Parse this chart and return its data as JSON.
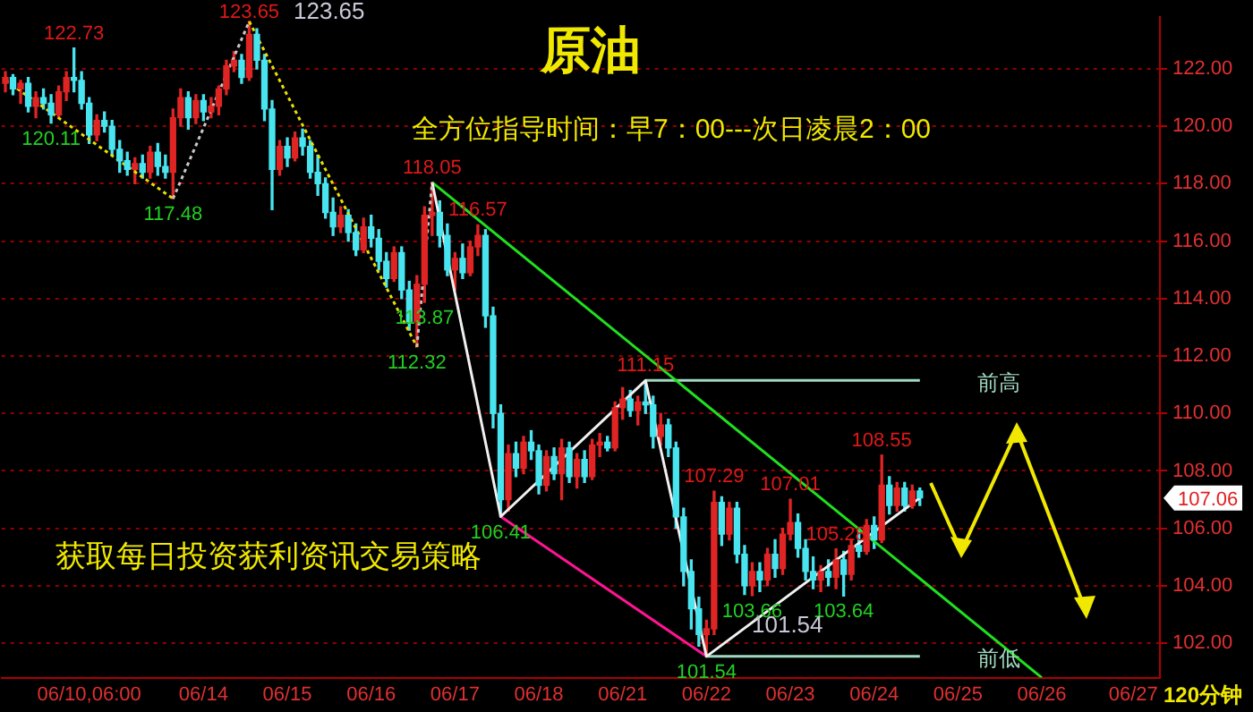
{
  "chart_data": {
    "type": "candlestick",
    "title": "原油",
    "subtitle": "全方位指导时间：早7：00---次日凌晨2：00",
    "categories": [
      null,
      null,
      null,
      null,
      null,
      null,
      null,
      null,
      null,
      null,
      null,
      "06/10,06:00",
      null,
      null,
      null,
      null,
      null,
      null,
      null,
      null,
      null,
      null,
      null,
      null,
      null,
      null,
      "06/14",
      null,
      null,
      null,
      null,
      null,
      null,
      null,
      null,
      null,
      null,
      "06/15",
      null,
      null,
      null,
      null,
      null,
      null,
      null,
      null,
      null,
      null,
      "06/16",
      null,
      null,
      null,
      null,
      null,
      null,
      null,
      null,
      null,
      null,
      "06/17",
      null,
      null,
      null,
      null,
      null,
      null,
      null,
      null,
      null,
      null,
      "06/18",
      null,
      null,
      null,
      null,
      null,
      null,
      null,
      null,
      null,
      null,
      "06/21",
      null,
      null,
      null,
      null,
      null,
      null,
      null,
      null,
      null,
      null,
      "06/22",
      null,
      null,
      null,
      null,
      null,
      null,
      null,
      null,
      null,
      null,
      "06/23",
      null,
      null,
      null,
      null,
      null,
      null,
      null,
      null,
      null,
      null,
      "06/24",
      null,
      null,
      null,
      null,
      null,
      null,
      null,
      null,
      null,
      null,
      "06/25",
      null,
      null,
      null,
      null,
      null,
      null,
      null,
      null,
      null,
      null,
      "06/26",
      null,
      null,
      null,
      null,
      null,
      null,
      null,
      null,
      null,
      null,
      null,
      "06/27",
      null,
      null,
      null
    ],
    "ohlc": [
      [
        121.5,
        121.9,
        121.2,
        121.7
      ],
      [
        121.7,
        121.8,
        121.1,
        121.3
      ],
      [
        121.3,
        121.6,
        120.8,
        121.5
      ],
      [
        121.5,
        121.7,
        120.5,
        120.7
      ],
      [
        120.7,
        121.2,
        120.3,
        121.0
      ],
      [
        121.0,
        121.3,
        120.6,
        120.8
      ],
      [
        120.8,
        121.1,
        120.11,
        120.4
      ],
      [
        120.4,
        121.4,
        120.3,
        121.2
      ],
      [
        121.2,
        121.9,
        120.9,
        121.7
      ],
      [
        121.7,
        122.73,
        121.2,
        121.6
      ],
      [
        121.6,
        121.9,
        120.6,
        120.8
      ],
      [
        120.8,
        121.0,
        119.4,
        119.7
      ],
      [
        119.7,
        120.4,
        119.5,
        120.2
      ],
      [
        120.2,
        120.5,
        119.8,
        120.0
      ],
      [
        120.0,
        120.2,
        119.0,
        119.2
      ],
      [
        119.2,
        119.5,
        118.4,
        118.8
      ],
      [
        118.8,
        119.1,
        118.3,
        118.5
      ],
      [
        118.5,
        118.9,
        118.0,
        118.7
      ],
      [
        118.7,
        119.0,
        118.2,
        118.4
      ],
      [
        118.4,
        119.3,
        118.2,
        119.1
      ],
      [
        119.1,
        119.4,
        118.3,
        118.6
      ],
      [
        118.6,
        119.0,
        118.2,
        118.4
      ],
      [
        118.4,
        120.6,
        117.48,
        120.3
      ],
      [
        120.3,
        121.3,
        120.0,
        121.0
      ],
      [
        121.0,
        121.2,
        119.9,
        120.3
      ],
      [
        120.3,
        121.1,
        120.1,
        120.9
      ],
      [
        120.9,
        121.1,
        120.2,
        120.5
      ],
      [
        120.5,
        121.0,
        120.3,
        120.7
      ],
      [
        120.7,
        121.4,
        120.4,
        121.3
      ],
      [
        121.3,
        122.3,
        121.1,
        122.1
      ],
      [
        122.1,
        122.6,
        121.9,
        122.3
      ],
      [
        122.3,
        122.5,
        121.5,
        121.7
      ],
      [
        121.7,
        123.65,
        121.6,
        123.2
      ],
      [
        123.2,
        123.4,
        122.0,
        122.3
      ],
      [
        122.3,
        122.5,
        120.2,
        120.6
      ],
      [
        120.6,
        120.9,
        117.1,
        118.5
      ],
      [
        118.5,
        119.5,
        118.3,
        119.3
      ],
      [
        119.3,
        119.6,
        118.6,
        118.9
      ],
      [
        118.9,
        119.8,
        118.8,
        119.6
      ],
      [
        119.6,
        119.9,
        119.0,
        119.3
      ],
      [
        119.3,
        119.5,
        118.2,
        118.4
      ],
      [
        118.4,
        119.0,
        117.6,
        118.0
      ],
      [
        118.0,
        118.2,
        116.8,
        117.0
      ],
      [
        117.0,
        117.5,
        116.2,
        116.5
      ],
      [
        116.5,
        117.2,
        116.3,
        116.9
      ],
      [
        116.9,
        117.1,
        116.0,
        116.3
      ],
      [
        116.3,
        116.6,
        115.5,
        115.7
      ],
      [
        115.7,
        116.8,
        115.6,
        116.5
      ],
      [
        116.5,
        116.9,
        115.8,
        116.1
      ],
      [
        116.1,
        116.4,
        115.0,
        115.3
      ],
      [
        115.3,
        115.6,
        114.4,
        114.7
      ],
      [
        114.7,
        115.8,
        114.6,
        115.6
      ],
      [
        115.6,
        115.8,
        114.0,
        114.3
      ],
      [
        114.3,
        114.6,
        112.9,
        113.2
      ],
      [
        113.2,
        114.8,
        112.32,
        114.5
      ],
      [
        114.5,
        117.2,
        113.87,
        116.9
      ],
      [
        116.9,
        118.05,
        116.2,
        117.0
      ],
      [
        117.0,
        117.4,
        115.8,
        116.2
      ],
      [
        116.2,
        116.6,
        114.8,
        115.0
      ],
      [
        115.0,
        115.6,
        114.3,
        115.4
      ],
      [
        115.4,
        115.9,
        114.7,
        114.9
      ],
      [
        114.9,
        116.0,
        114.8,
        115.8
      ],
      [
        115.8,
        116.57,
        115.5,
        116.2
      ],
      [
        116.2,
        116.4,
        113.0,
        113.4
      ],
      [
        113.4,
        113.7,
        109.5,
        110.0
      ],
      [
        110.0,
        110.3,
        106.41,
        107.0
      ],
      [
        107.0,
        108.9,
        106.6,
        108.6
      ],
      [
        108.6,
        109.0,
        107.8,
        108.1
      ],
      [
        108.1,
        109.2,
        107.9,
        109.0
      ],
      [
        109.0,
        109.4,
        108.4,
        108.7
      ],
      [
        108.7,
        108.9,
        107.2,
        107.5
      ],
      [
        107.5,
        108.7,
        107.3,
        108.5
      ],
      [
        108.5,
        108.8,
        107.7,
        107.9
      ],
      [
        107.9,
        109.1,
        107.0,
        108.8
      ],
      [
        108.8,
        109.0,
        107.6,
        107.8
      ],
      [
        107.8,
        108.6,
        107.4,
        108.4
      ],
      [
        108.4,
        108.7,
        107.6,
        107.8
      ],
      [
        107.8,
        109.1,
        107.7,
        108.9
      ],
      [
        108.9,
        109.3,
        108.5,
        109.0
      ],
      [
        109.0,
        109.2,
        108.7,
        108.8
      ],
      [
        108.8,
        110.4,
        108.7,
        110.2
      ],
      [
        110.2,
        110.9,
        109.8,
        110.5
      ],
      [
        110.5,
        110.8,
        109.9,
        110.1
      ],
      [
        110.1,
        110.6,
        109.6,
        110.4
      ],
      [
        110.4,
        111.15,
        110.0,
        110.3
      ],
      [
        110.3,
        110.6,
        108.8,
        109.2
      ],
      [
        109.2,
        110.0,
        108.9,
        109.6
      ],
      [
        109.6,
        109.8,
        108.5,
        108.8
      ],
      [
        108.8,
        109.0,
        106.0,
        106.4
      ],
      [
        106.4,
        106.7,
        104.0,
        104.5
      ],
      [
        104.5,
        104.9,
        102.5,
        103.2
      ],
      [
        103.2,
        103.6,
        101.9,
        102.3
      ],
      [
        102.3,
        102.8,
        101.54,
        102.5
      ],
      [
        102.5,
        107.29,
        102.3,
        106.9
      ],
      [
        106.9,
        107.1,
        105.4,
        105.8
      ],
      [
        105.8,
        106.9,
        105.6,
        106.7
      ],
      [
        106.7,
        106.9,
        104.8,
        105.1
      ],
      [
        105.1,
        105.4,
        103.7,
        104.0
      ],
      [
        104.0,
        104.8,
        103.66,
        104.5
      ],
      [
        104.5,
        104.8,
        103.8,
        104.2
      ],
      [
        104.2,
        105.3,
        104.0,
        105.1
      ],
      [
        105.1,
        105.6,
        104.3,
        104.6
      ],
      [
        104.6,
        106.0,
        104.4,
        105.8
      ],
      [
        105.8,
        107.01,
        105.6,
        106.2
      ],
      [
        106.2,
        106.5,
        105.0,
        105.3
      ],
      [
        105.3,
        105.6,
        104.2,
        104.5
      ],
      [
        104.5,
        105.0,
        103.9,
        104.2
      ],
      [
        104.2,
        104.7,
        103.8,
        104.5
      ],
      [
        104.5,
        104.9,
        104.0,
        104.3
      ],
      [
        104.3,
        105.28,
        103.9,
        104.9
      ],
      [
        104.9,
        105.2,
        103.64,
        104.4
      ],
      [
        104.4,
        105.6,
        104.2,
        105.4
      ],
      [
        105.4,
        106.0,
        105.0,
        105.2
      ],
      [
        105.2,
        106.3,
        105.1,
        106.1
      ],
      [
        106.1,
        106.4,
        105.3,
        105.6
      ],
      [
        105.6,
        108.55,
        105.5,
        107.5
      ],
      [
        107.5,
        107.8,
        106.5,
        106.8
      ],
      [
        106.8,
        107.6,
        106.6,
        107.4
      ],
      [
        107.4,
        107.6,
        106.6,
        106.8
      ],
      [
        106.8,
        107.5,
        106.7,
        107.3
      ],
      [
        107.3,
        107.4,
        106.8,
        107.06
      ],
      null,
      null,
      null,
      null,
      null,
      null,
      null,
      null,
      null,
      null,
      null,
      null,
      null,
      null,
      null,
      null,
      null,
      null,
      null,
      null,
      null,
      null,
      null,
      null,
      null,
      null,
      null,
      null,
      null,
      null,
      null
    ],
    "series": [
      {
        "type": "line",
        "color": "#e8e000",
        "line_style": "dotted",
        "values": [
          121.6,
          null,
          null,
          null,
          null,
          null,
          null,
          null,
          null,
          null,
          null,
          null,
          null,
          null,
          null,
          null,
          null,
          null,
          null,
          null,
          null,
          null,
          117.48,
          null,
          null,
          null,
          null,
          null,
          null,
          null,
          null,
          null,
          null,
          null,
          null,
          null,
          null,
          null,
          null,
          null,
          null,
          null,
          null,
          null,
          null,
          null,
          null,
          null,
          null,
          null,
          null,
          null,
          null,
          null,
          null,
          null,
          null,
          null,
          null,
          null,
          null,
          null,
          null,
          null,
          null,
          null,
          null,
          null,
          null,
          null,
          null,
          null,
          null,
          null,
          null,
          null,
          null,
          null,
          null,
          null,
          null,
          null,
          null,
          null,
          null,
          null,
          null,
          null,
          null,
          null,
          null,
          null,
          null,
          null,
          null,
          null,
          null,
          null,
          null,
          null,
          null,
          null,
          null,
          null,
          null,
          null,
          null,
          null,
          null,
          null,
          null,
          null,
          null,
          null,
          null,
          null,
          null,
          null,
          null,
          null,
          null,
          null,
          null,
          null,
          null,
          null,
          null,
          null,
          null,
          null,
          null,
          null,
          null,
          null,
          null,
          null,
          null,
          null,
          null,
          null,
          null,
          null,
          null,
          null,
          null,
          null,
          null,
          null,
          null,
          null,
          null,
          null
        ]
      },
      {
        "type": "line",
        "color": "#c8c8c8",
        "line_style": "dotted",
        "values": [
          null,
          null,
          null,
          null,
          null,
          null,
          null,
          null,
          null,
          null,
          null,
          null,
          null,
          null,
          null,
          null,
          null,
          null,
          null,
          null,
          null,
          null,
          117.48,
          null,
          null,
          null,
          null,
          null,
          null,
          null,
          null,
          null,
          123.65,
          null,
          null,
          null,
          null,
          null,
          null,
          null,
          null,
          null,
          null,
          null,
          null,
          null,
          null,
          null,
          null,
          null,
          null,
          null,
          null,
          null,
          null,
          null,
          null,
          null,
          null,
          null,
          null,
          null,
          null,
          null,
          null,
          null,
          null,
          null,
          null,
          null,
          null,
          null,
          null,
          null,
          null,
          null,
          null,
          null,
          null,
          null,
          null,
          null,
          null,
          null,
          null,
          null,
          null,
          null,
          null,
          null,
          null,
          null,
          null,
          null,
          null,
          null,
          null,
          null,
          null,
          null,
          null,
          null,
          null,
          null,
          null,
          null,
          null,
          null,
          null,
          null,
          null,
          null,
          null,
          null,
          null,
          null,
          null,
          null,
          null,
          null,
          null,
          null,
          null,
          null,
          null,
          null,
          null,
          null,
          null,
          null,
          null,
          null,
          null,
          null,
          null,
          null,
          null,
          null,
          null,
          null,
          null,
          null,
          null,
          null,
          null,
          null,
          null,
          null,
          null,
          null,
          null,
          null
        ]
      },
      {
        "type": "line",
        "color": "#e8e000",
        "line_style": "dotted",
        "values": [
          null,
          null,
          null,
          null,
          null,
          null,
          null,
          null,
          null,
          null,
          null,
          null,
          null,
          null,
          null,
          null,
          null,
          null,
          null,
          null,
          null,
          null,
          null,
          null,
          null,
          null,
          null,
          null,
          null,
          null,
          null,
          null,
          123.65,
          null,
          null,
          null,
          null,
          null,
          null,
          null,
          null,
          null,
          null,
          null,
          null,
          null,
          null,
          null,
          null,
          null,
          null,
          null,
          null,
          null,
          112.32,
          null,
          null,
          null,
          null,
          null,
          null,
          null,
          null,
          null,
          null,
          null,
          null,
          null,
          null,
          null,
          null,
          null,
          null,
          null,
          null,
          null,
          null,
          null,
          null,
          null,
          null,
          null,
          null,
          null,
          null,
          null,
          null,
          null,
          null,
          null,
          null,
          null,
          null,
          null,
          null,
          null,
          null,
          null,
          null,
          null,
          null,
          null,
          null,
          null,
          null,
          null,
          null,
          null,
          null,
          null,
          null,
          null,
          null,
          null,
          null,
          null,
          null,
          null,
          null,
          null,
          null,
          null,
          null,
          null,
          null,
          null,
          null,
          null,
          null,
          null,
          null,
          null,
          null,
          null,
          null,
          null,
          null,
          null,
          null,
          null,
          null,
          null,
          null,
          null,
          null,
          null,
          null,
          null,
          null,
          null,
          null,
          null
        ]
      },
      {
        "type": "line",
        "color": "#c8c8c8",
        "line_style": "dotted",
        "values": [
          null,
          null,
          null,
          null,
          null,
          null,
          null,
          null,
          null,
          null,
          null,
          null,
          null,
          null,
          null,
          null,
          null,
          null,
          null,
          null,
          null,
          null,
          null,
          null,
          null,
          null,
          null,
          null,
          null,
          null,
          null,
          null,
          null,
          null,
          null,
          null,
          null,
          null,
          null,
          null,
          null,
          null,
          null,
          null,
          null,
          null,
          null,
          null,
          null,
          null,
          null,
          null,
          null,
          null,
          112.32,
          null,
          118.05,
          null,
          null,
          null,
          null,
          null,
          null,
          null,
          null,
          null,
          null,
          null,
          null,
          null,
          null,
          null,
          null,
          null,
          null,
          null,
          null,
          null,
          null,
          null,
          null,
          null,
          null,
          null,
          null,
          null,
          null,
          null,
          null,
          null,
          null,
          null,
          null,
          null,
          null,
          null,
          null,
          null,
          null,
          null,
          null,
          null,
          null,
          null,
          null,
          null,
          null,
          null,
          null,
          null,
          null,
          null,
          null,
          null,
          null,
          null,
          null,
          null,
          null,
          null,
          null,
          null,
          null,
          null,
          null,
          null,
          null,
          null,
          null,
          null,
          null,
          null,
          null,
          null,
          null,
          null,
          null,
          null,
          null,
          null,
          null,
          null,
          null,
          null,
          null,
          null,
          null,
          null,
          null,
          null,
          null,
          null
        ]
      },
      {
        "type": "line",
        "color": "#f0f0f0",
        "line_style": "solid",
        "values": [
          null,
          null,
          null,
          null,
          null,
          null,
          null,
          null,
          null,
          null,
          null,
          null,
          null,
          null,
          null,
          null,
          null,
          null,
          null,
          null,
          null,
          null,
          null,
          null,
          null,
          null,
          null,
          null,
          null,
          null,
          null,
          null,
          null,
          null,
          null,
          null,
          null,
          null,
          null,
          null,
          null,
          null,
          null,
          null,
          null,
          null,
          null,
          null,
          null,
          null,
          null,
          null,
          null,
          null,
          null,
          null,
          118.05,
          null,
          null,
          null,
          null,
          null,
          null,
          null,
          null,
          106.41,
          null,
          null,
          null,
          null,
          null,
          null,
          null,
          null,
          null,
          null,
          null,
          null,
          null,
          null,
          null,
          null,
          null,
          null,
          111.15,
          null,
          null,
          null,
          null,
          null,
          null,
          null,
          101.54,
          null,
          null,
          null,
          null,
          null,
          null,
          null,
          null,
          null,
          null,
          null,
          null,
          null,
          null,
          null,
          null,
          null,
          null,
          null,
          null,
          null,
          null,
          null,
          null,
          null,
          null,
          null,
          107.06,
          null,
          null,
          null,
          null,
          null,
          null,
          null,
          null,
          null,
          null,
          null,
          null,
          null,
          null,
          null,
          null,
          null,
          null,
          null,
          null,
          null,
          null,
          null,
          null,
          null,
          null,
          null,
          null,
          null,
          null,
          null
        ]
      },
      {
        "type": "line",
        "color": "#20e020",
        "line_style": "solid",
        "values": [
          null,
          null,
          null,
          null,
          null,
          null,
          null,
          null,
          null,
          null,
          null,
          null,
          null,
          null,
          null,
          null,
          null,
          null,
          null,
          null,
          null,
          null,
          null,
          null,
          null,
          null,
          null,
          null,
          null,
          null,
          null,
          null,
          null,
          null,
          null,
          null,
          null,
          null,
          null,
          null,
          null,
          null,
          null,
          null,
          null,
          null,
          null,
          null,
          null,
          null,
          null,
          null,
          null,
          null,
          null,
          null,
          118.05,
          null,
          null,
          null,
          null,
          null,
          null,
          null,
          null,
          null,
          null,
          null,
          null,
          null,
          null,
          null,
          null,
          null,
          null,
          null,
          null,
          null,
          null,
          null,
          null,
          null,
          null,
          null,
          null,
          null,
          null,
          null,
          null,
          null,
          null,
          null,
          null,
          null,
          null,
          null,
          null,
          null,
          null,
          null,
          null,
          null,
          null,
          null,
          null,
          null,
          null,
          null,
          null,
          null,
          null,
          null,
          null,
          null,
          null,
          null,
          null,
          null,
          null,
          null,
          null,
          null,
          null,
          null,
          null,
          null,
          null,
          null,
          null,
          null,
          null,
          null,
          null,
          null,
          null,
          null,
          100.8,
          null,
          null,
          null,
          null,
          null,
          null,
          null,
          null,
          null,
          null,
          null,
          null,
          null,
          null,
          null
        ]
      },
      {
        "type": "line",
        "color": "#ff1493",
        "line_style": "solid",
        "values": [
          null,
          null,
          null,
          null,
          null,
          null,
          null,
          null,
          null,
          null,
          null,
          null,
          null,
          null,
          null,
          null,
          null,
          null,
          null,
          null,
          null,
          null,
          null,
          null,
          null,
          null,
          null,
          null,
          null,
          null,
          null,
          null,
          null,
          null,
          null,
          null,
          null,
          null,
          null,
          null,
          null,
          null,
          null,
          null,
          null,
          null,
          null,
          null,
          null,
          null,
          null,
          null,
          null,
          null,
          null,
          null,
          null,
          null,
          null,
          null,
          null,
          null,
          null,
          null,
          null,
          106.41,
          null,
          null,
          null,
          null,
          null,
          null,
          null,
          null,
          null,
          null,
          null,
          null,
          null,
          null,
          null,
          null,
          null,
          null,
          null,
          null,
          null,
          null,
          null,
          null,
          null,
          null,
          101.54,
          null,
          null,
          null,
          null,
          null,
          null,
          null,
          null,
          null,
          null,
          null,
          null,
          null,
          null,
          null,
          null,
          null,
          null,
          null,
          null,
          null,
          null,
          null,
          null,
          null,
          null,
          null,
          null,
          null,
          null,
          null,
          null,
          null,
          null,
          null,
          null,
          null,
          null,
          null,
          null,
          null,
          null,
          null,
          null,
          null,
          null,
          null,
          null,
          null,
          null,
          null,
          null,
          null,
          null,
          null,
          null,
          null,
          null,
          null
        ]
      },
      {
        "type": "line",
        "color": "#a0d8c0",
        "line_style": "solid",
        "name": "前高",
        "values": [
          null,
          null,
          null,
          null,
          null,
          null,
          null,
          null,
          null,
          null,
          null,
          null,
          null,
          null,
          null,
          null,
          null,
          null,
          null,
          null,
          null,
          null,
          null,
          null,
          null,
          null,
          null,
          null,
          null,
          null,
          null,
          null,
          null,
          null,
          null,
          null,
          null,
          null,
          null,
          null,
          null,
          null,
          null,
          null,
          null,
          null,
          null,
          null,
          null,
          null,
          null,
          null,
          null,
          null,
          null,
          null,
          null,
          null,
          null,
          null,
          null,
          null,
          null,
          null,
          null,
          null,
          null,
          null,
          null,
          null,
          null,
          null,
          null,
          null,
          null,
          null,
          null,
          null,
          null,
          null,
          null,
          null,
          null,
          null,
          111.15,
          null,
          null,
          null,
          null,
          null,
          null,
          null,
          null,
          null,
          null,
          null,
          null,
          null,
          null,
          null,
          null,
          null,
          null,
          null,
          null,
          null,
          null,
          null,
          null,
          null,
          null,
          null,
          null,
          null,
          null,
          null,
          null,
          null,
          null,
          null,
          111.15,
          null,
          null,
          null,
          null,
          null,
          null,
          null,
          null,
          null,
          null,
          null,
          null,
          null,
          null,
          null,
          null,
          null,
          null,
          null,
          null,
          null,
          null,
          null,
          null,
          null,
          null,
          null,
          null,
          null,
          null,
          null
        ]
      },
      {
        "type": "line",
        "color": "#a0d8c0",
        "line_style": "solid",
        "name": "前低",
        "values": [
          null,
          null,
          null,
          null,
          null,
          null,
          null,
          null,
          null,
          null,
          null,
          null,
          null,
          null,
          null,
          null,
          null,
          null,
          null,
          null,
          null,
          null,
          null,
          null,
          null,
          null,
          null,
          null,
          null,
          null,
          null,
          null,
          null,
          null,
          null,
          null,
          null,
          null,
          null,
          null,
          null,
          null,
          null,
          null,
          null,
          null,
          null,
          null,
          null,
          null,
          null,
          null,
          null,
          null,
          null,
          null,
          null,
          null,
          null,
          null,
          null,
          null,
          null,
          null,
          null,
          null,
          null,
          null,
          null,
          null,
          null,
          null,
          null,
          null,
          null,
          null,
          null,
          null,
          null,
          null,
          null,
          null,
          null,
          null,
          null,
          null,
          null,
          null,
          null,
          null,
          null,
          null,
          101.54,
          null,
          null,
          null,
          null,
          null,
          null,
          null,
          null,
          null,
          null,
          null,
          null,
          null,
          null,
          null,
          null,
          null,
          null,
          null,
          null,
          null,
          null,
          null,
          null,
          null,
          null,
          null,
          101.54,
          null,
          null,
          null,
          null,
          null,
          null,
          null,
          null,
          null,
          null,
          null,
          null,
          null,
          null,
          null,
          null,
          null,
          null,
          null,
          null,
          null,
          null,
          null,
          null,
          null,
          null,
          null,
          null,
          null,
          null,
          null
        ]
      }
    ],
    "annotations": [
      {
        "text": "122.73",
        "y": 122.73
      },
      {
        "text": "120.11",
        "y": 120.11
      },
      {
        "text": "117.48",
        "y": 117.48
      },
      {
        "text": "123.65",
        "y": 123.65
      },
      {
        "text": "118.05",
        "y": 118.05
      },
      {
        "text": "116.57",
        "y": 116.57
      },
      {
        "text": "113.87",
        "y": 113.87
      },
      {
        "text": "112.32",
        "y": 112.32
      },
      {
        "text": "106.41",
        "y": 106.41
      },
      {
        "text": "111.15",
        "y": 111.15
      },
      {
        "text": "107.29",
        "y": 107.29
      },
      {
        "text": "107.01",
        "y": 107.01
      },
      {
        "text": "105.28",
        "y": 105.28
      },
      {
        "text": "103.66",
        "y": 103.66
      },
      {
        "text": "103.64",
        "y": 103.64
      },
      {
        "text": "108.55",
        "y": 108.55
      },
      {
        "text": "101.54",
        "y": 101.54
      },
      "123.65",
      "101.54",
      "107.06",
      "获取每日投资获利资讯交易策略",
      "120分钟"
    ],
    "ylim": [
      100.8,
      123.8
    ],
    "yticks": [
      {
        "value": 102,
        "label": "102.00"
      },
      {
        "value": 104,
        "label": "104.00"
      },
      {
        "value": 106,
        "label": "106.00"
      },
      {
        "value": 108,
        "label": "108.00"
      },
      {
        "value": 110,
        "label": "110.00"
      },
      {
        "value": 112,
        "label": "112.00"
      },
      {
        "value": 114,
        "label": "114.00"
      },
      {
        "value": 116,
        "label": "116.00"
      },
      {
        "value": 118,
        "label": "118.00"
      },
      {
        "value": 120,
        "label": "120.00"
      },
      {
        "value": 122,
        "label": "122.00"
      }
    ],
    "grid": "y",
    "marker": "none"
  }
}
